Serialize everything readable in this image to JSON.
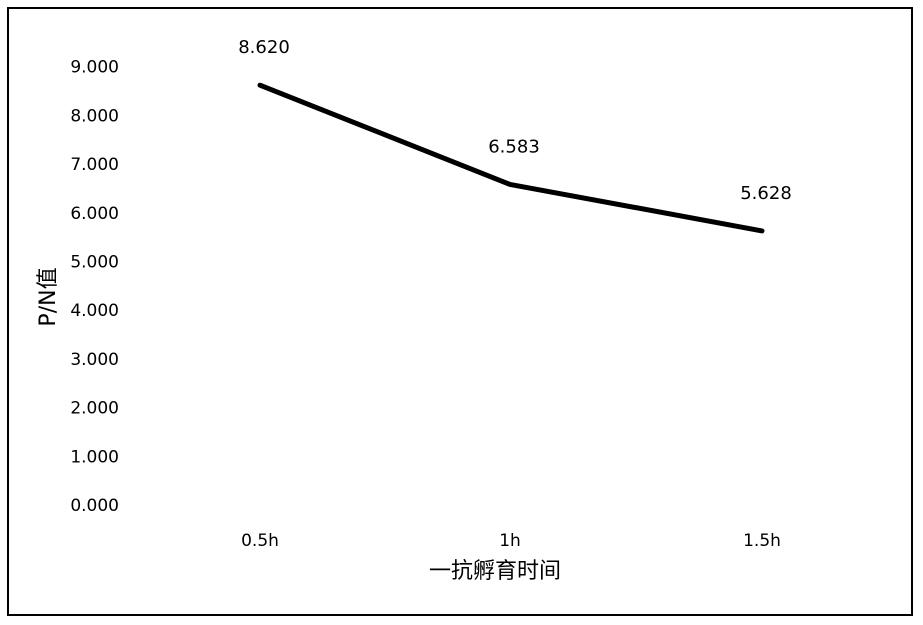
{
  "chart_data": {
    "type": "line",
    "title": "",
    "xlabel": "一抗孵育时间",
    "ylabel": "P/N值",
    "categories": [
      "0.5h",
      "1h",
      "1.5h"
    ],
    "series": [
      {
        "values": [
          8.62,
          6.583,
          5.628
        ],
        "labels": [
          "8.620",
          "6.583",
          "5.628"
        ],
        "color": "#000000"
      }
    ],
    "ylim": [
      0,
      9
    ],
    "yticks": [
      "0.000",
      "1.000",
      "2.000",
      "3.000",
      "4.000",
      "5.000",
      "6.000",
      "7.000",
      "8.000",
      "9.000"
    ],
    "grid": false,
    "legend": "none"
  }
}
